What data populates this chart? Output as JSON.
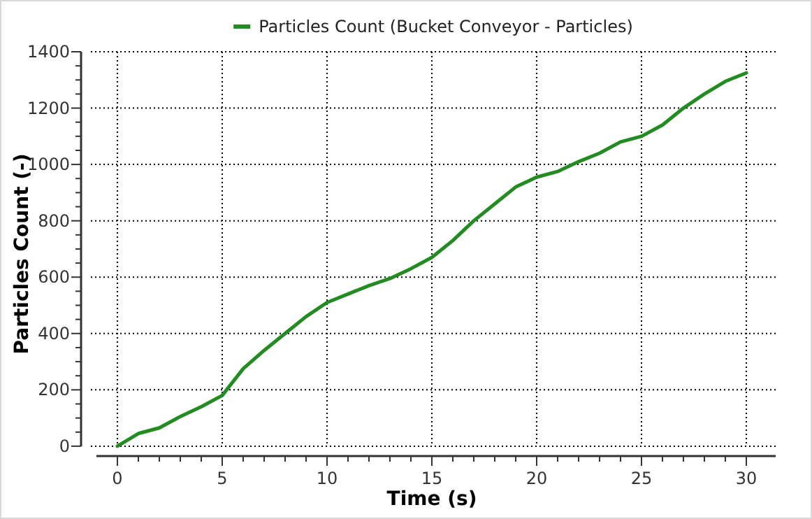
{
  "chart_data": {
    "type": "line",
    "xlabel": "Time (s)",
    "ylabel": "Particles Count (-)",
    "x": [
      0,
      1,
      2,
      3,
      4,
      5,
      6,
      7,
      8,
      9,
      10,
      11,
      12,
      13,
      14,
      15,
      16,
      17,
      18,
      19,
      20,
      21,
      22,
      23,
      24,
      25,
      26,
      27,
      28,
      29,
      30
    ],
    "series": [
      {
        "name": "Particles Count (Bucket Conveyor - Particles)",
        "color": "#228b22",
        "values": [
          0,
          45,
          65,
          105,
          140,
          180,
          275,
          340,
          400,
          460,
          510,
          540,
          570,
          595,
          630,
          670,
          730,
          800,
          860,
          920,
          955,
          975,
          1010,
          1040,
          1080,
          1100,
          1140,
          1200,
          1250,
          1295,
          1325
        ]
      }
    ],
    "xlim": [
      -1.4,
      31.4
    ],
    "ylim": [
      -35,
      1400
    ],
    "xticks": [
      0,
      {
        "value": 1,
        "label": null
      },
      {
        "value": 2,
        "label": null
      },
      {
        "value": 3,
        "label": null
      },
      {
        "value": 4,
        "label": null
      },
      5,
      {
        "value": 6,
        "label": null
      },
      {
        "value": 7,
        "label": null
      },
      {
        "value": 8,
        "label": null
      },
      {
        "value": 9,
        "label": null
      },
      10,
      {
        "value": 11,
        "label": null
      },
      {
        "value": 12,
        "label": null
      },
      {
        "value": 13,
        "label": null
      },
      {
        "value": 14,
        "label": null
      },
      15,
      {
        "value": 16,
        "label": null
      },
      {
        "value": 17,
        "label": null
      },
      {
        "value": 18,
        "label": null
      },
      {
        "value": 19,
        "label": null
      },
      20,
      {
        "value": 21,
        "label": null
      },
      {
        "value": 22,
        "label": null
      },
      {
        "value": 23,
        "label": null
      },
      {
        "value": 24,
        "label": null
      },
      25,
      {
        "value": 26,
        "label": null
      },
      {
        "value": 27,
        "label": null
      },
      {
        "value": 28,
        "label": null
      },
      {
        "value": 29,
        "label": null
      },
      30
    ],
    "yticks": [
      0,
      {
        "value": 50,
        "label": null
      },
      {
        "value": 100,
        "label": null
      },
      {
        "value": 150,
        "label": null
      },
      200,
      {
        "value": 250,
        "label": null
      },
      {
        "value": 300,
        "label": null
      },
      {
        "value": 350,
        "label": null
      },
      400,
      {
        "value": 450,
        "label": null
      },
      {
        "value": 500,
        "label": null
      },
      {
        "value": 550,
        "label": null
      },
      600,
      {
        "value": 650,
        "label": null
      },
      {
        "value": 700,
        "label": null
      },
      {
        "value": 750,
        "label": null
      },
      800,
      {
        "value": 850,
        "label": null
      },
      {
        "value": 900,
        "label": null
      },
      {
        "value": 950,
        "label": null
      },
      1000,
      {
        "value": 1050,
        "label": null
      },
      {
        "value": 1100,
        "label": null
      },
      {
        "value": 1150,
        "label": null
      },
      1200,
      {
        "value": 1250,
        "label": null
      },
      {
        "value": 1300,
        "label": null
      },
      {
        "value": 1350,
        "label": null
      },
      1400
    ],
    "grid": true,
    "legend": "top",
    "marker": "none",
    "line_style": "solid"
  }
}
